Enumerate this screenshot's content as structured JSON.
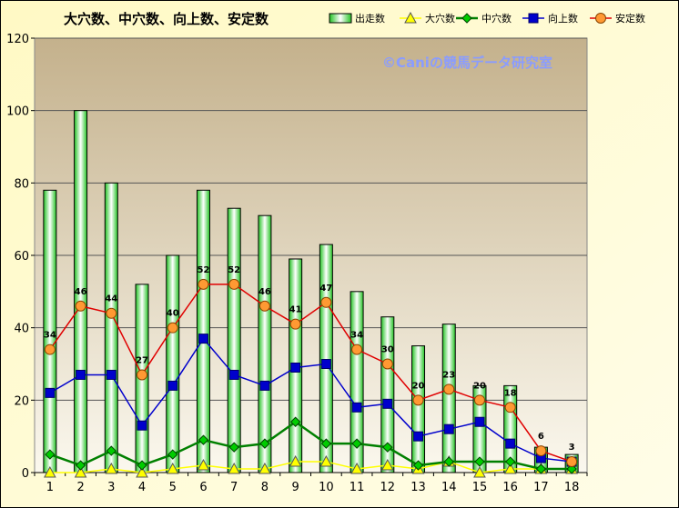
{
  "chart_data": {
    "type": "bar",
    "title": "大穴数、中穴数、向上数、安定数",
    "watermark": "©Caniの競馬データ研究室",
    "categories": [
      "1",
      "2",
      "3",
      "4",
      "5",
      "6",
      "7",
      "8",
      "9",
      "10",
      "11",
      "12",
      "13",
      "14",
      "15",
      "16",
      "17",
      "18"
    ],
    "ylim": [
      0,
      120
    ],
    "yticks": [
      0,
      20,
      40,
      60,
      80,
      100,
      120
    ],
    "legend_position": "top-right",
    "grid": true,
    "series": [
      {
        "name": "出走数",
        "kind": "bar",
        "color": "#7fe07f",
        "values": [
          78,
          100,
          80,
          52,
          60,
          78,
          73,
          71,
          59,
          63,
          50,
          43,
          35,
          41,
          24,
          24,
          7,
          5
        ]
      },
      {
        "name": "大穴数",
        "kind": "line",
        "marker": "triangle",
        "color": "#ffff00",
        "values": [
          0,
          0,
          1,
          0,
          1,
          2,
          1,
          1,
          3,
          3,
          1,
          2,
          1,
          3,
          0,
          1,
          1,
          1
        ]
      },
      {
        "name": "中穴数",
        "kind": "line",
        "marker": "diamond",
        "color": "#008000",
        "values": [
          5,
          2,
          6,
          2,
          5,
          9,
          7,
          8,
          14,
          8,
          8,
          7,
          2,
          3,
          3,
          3,
          1,
          1
        ]
      },
      {
        "name": "向上数",
        "kind": "line",
        "marker": "square",
        "color": "#0000cc",
        "values": [
          22,
          27,
          27,
          13,
          24,
          37,
          27,
          24,
          29,
          30,
          18,
          19,
          10,
          12,
          14,
          8,
          4,
          3
        ]
      },
      {
        "name": "安定数",
        "kind": "line",
        "marker": "circle",
        "color": "#e00000",
        "values": [
          34,
          46,
          44,
          27,
          40,
          52,
          52,
          46,
          41,
          47,
          34,
          30,
          20,
          23,
          20,
          18,
          6,
          3
        ],
        "data_labels": [
          "34",
          "46",
          "44",
          "27",
          "40",
          "52",
          "52",
          "46",
          "41",
          "47",
          "34",
          "30",
          "20",
          "23",
          "20",
          "18",
          "6",
          "3"
        ]
      }
    ]
  }
}
